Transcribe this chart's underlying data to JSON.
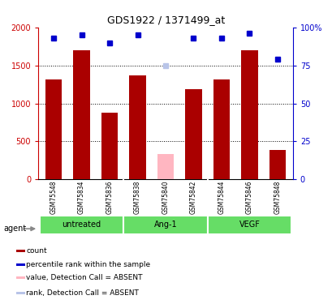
{
  "title": "GDS1922 / 1371499_at",
  "samples": [
    "GSM75548",
    "GSM75834",
    "GSM75836",
    "GSM75838",
    "GSM75840",
    "GSM75842",
    "GSM75844",
    "GSM75846",
    "GSM75848"
  ],
  "counts": [
    1310,
    1700,
    880,
    1370,
    330,
    1190,
    1310,
    1700,
    390
  ],
  "percentile_ranks": [
    93,
    95,
    90,
    95,
    null,
    93,
    93,
    96,
    79
  ],
  "absent_mask": [
    false,
    false,
    false,
    false,
    true,
    false,
    false,
    false,
    false
  ],
  "absent_rank": [
    null,
    null,
    null,
    null,
    75,
    null,
    null,
    null,
    null
  ],
  "ylim_left": [
    0,
    2000
  ],
  "ylim_right": [
    0,
    100
  ],
  "yticks_left": [
    0,
    500,
    1000,
    1500,
    2000
  ],
  "yticks_right": [
    0,
    25,
    50,
    75,
    100
  ],
  "ytick_labels_left": [
    "0",
    "500",
    "1000",
    "1500",
    "2000"
  ],
  "ytick_labels_right": [
    "0",
    "25",
    "50",
    "75",
    "100%"
  ],
  "groups": [
    {
      "label": "untreated",
      "start": 0,
      "end": 2
    },
    {
      "label": "Ang-1",
      "start": 3,
      "end": 5
    },
    {
      "label": "VEGF",
      "start": 6,
      "end": 8
    }
  ],
  "bar_color": "#AA0000",
  "absent_bar_color": "#FFB6C1",
  "dot_color": "#0000CC",
  "absent_dot_color": "#B8C4E8",
  "background_color": "#ffffff",
  "group_color": "#66DD66",
  "sample_bg_color": "#D0D0D0",
  "left_axis_color": "#CC0000",
  "right_axis_color": "#0000CC",
  "legend_items": [
    {
      "color": "#AA0000",
      "label": "count"
    },
    {
      "color": "#0000CC",
      "label": "percentile rank within the sample"
    },
    {
      "color": "#FFB6C1",
      "label": "value, Detection Call = ABSENT"
    },
    {
      "color": "#B8C4E8",
      "label": "rank, Detection Call = ABSENT"
    }
  ]
}
